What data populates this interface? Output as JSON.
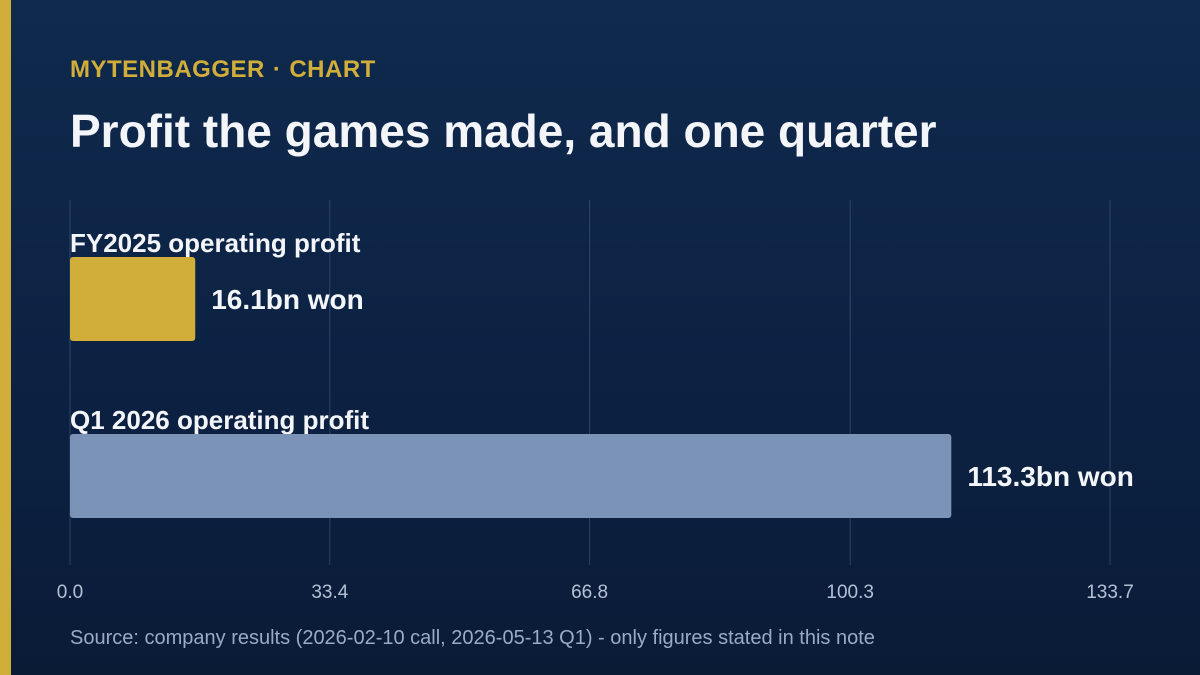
{
  "header": {
    "brand": "MYTENBAGGER",
    "separator": "·",
    "section": "CHART",
    "title": "Profit the games made, and one quarter"
  },
  "chart_data": {
    "type": "bar",
    "orientation": "horizontal",
    "categories": [
      "FY2025 operating profit",
      "Q1 2026 operating profit"
    ],
    "values": [
      16.1,
      113.3
    ],
    "value_labels": [
      "16.1bn won",
      "113.3bn won"
    ],
    "bar_colors": [
      "#d1ad3a",
      "#7b93b6"
    ],
    "xlim": [
      0,
      133.7
    ],
    "ticks": [
      0.0,
      33.4,
      66.8,
      100.3,
      133.7
    ],
    "tick_labels": [
      "0.0",
      "33.4",
      "66.8",
      "100.3",
      "133.7"
    ],
    "grid": true
  },
  "footer": {
    "source": "Source: company results (2026-02-10 call, 2026-05-13 Q1) - only figures stated in this note"
  },
  "colors": {
    "accent": "#d1ad3a",
    "background": "#0f2748",
    "text": "#f3f5f9",
    "muted": "#9aabc6"
  }
}
